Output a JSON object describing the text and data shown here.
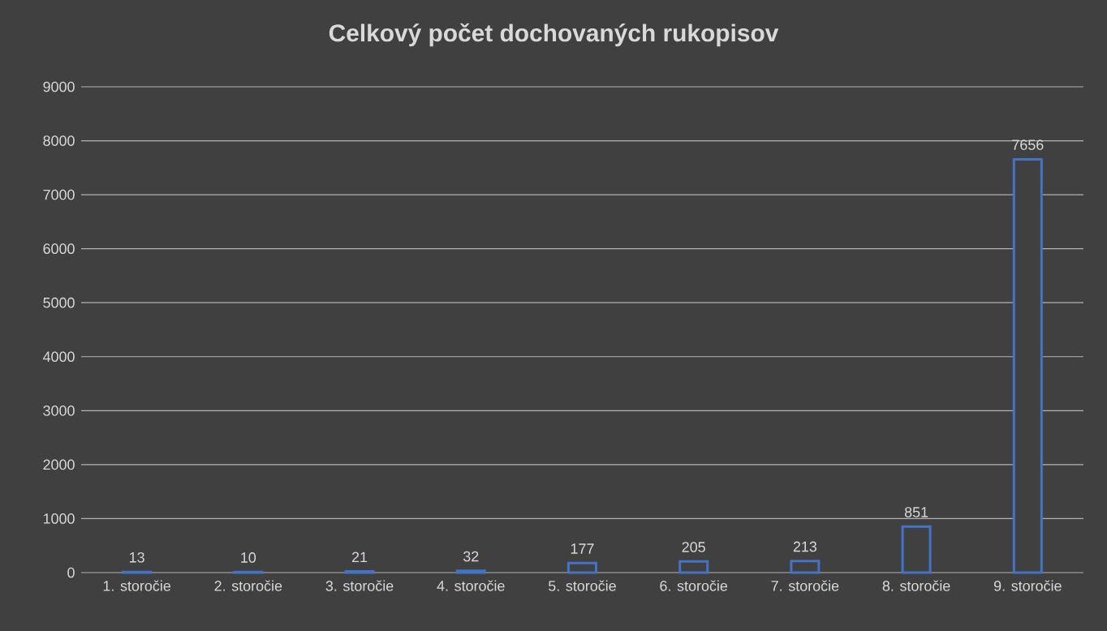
{
  "chart_data": {
    "type": "bar",
    "title": "Celkový počet dochovaných rukopisov",
    "categories": [
      "1. storočie",
      "2. storočie",
      "3. storočie",
      "4. storočie",
      "5. storočie",
      "6. storočie",
      "7. storočie",
      "8. storočie",
      "9. storočie"
    ],
    "values": [
      13,
      10,
      21,
      32,
      177,
      205,
      213,
      851,
      7656
    ],
    "color": "#4472c4",
    "ylim": [
      0,
      9000
    ],
    "yticks": [
      0,
      1000,
      2000,
      3000,
      4000,
      5000,
      6000,
      7000,
      8000,
      9000
    ],
    "grid": "y",
    "data_labels": true
  }
}
